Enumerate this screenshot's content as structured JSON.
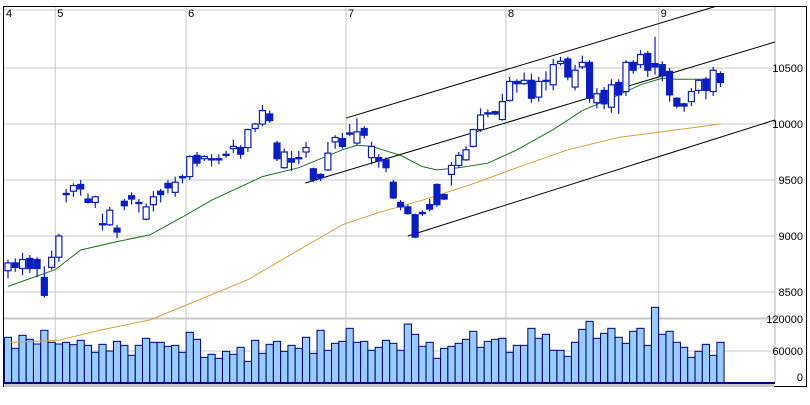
{
  "chart_data": {
    "type": "candlestick",
    "title": "",
    "x_month_labels": [
      {
        "label": "4",
        "start_index": 0
      },
      {
        "label": "5",
        "start_index": 7
      },
      {
        "label": "6",
        "start_index": 25
      },
      {
        "label": "7",
        "start_index": 47
      },
      {
        "label": "8",
        "start_index": 69
      },
      {
        "label": "9",
        "start_index": 90
      }
    ],
    "price_axis": {
      "ticks": [
        10500,
        10000,
        9500,
        9000,
        8500
      ],
      "tick_labels": [
        "10500",
        "10000",
        "9500",
        "9000",
        "8500"
      ]
    },
    "volume_axis": {
      "ticks": [
        120000,
        60000,
        0
      ],
      "tick_labels": [
        "120000",
        "60000",
        "0"
      ]
    },
    "grid": true,
    "colors": {
      "candle": "#0a1ec0",
      "volume_fill": "#99ccff",
      "volume_stroke": "#00007a",
      "ma_short": "#1e6e1e",
      "ma_long": "#d6a23a",
      "trendline": "#000000",
      "grid": "#c8c8c8"
    },
    "ohlc": [
      [
        8690,
        8790,
        8620,
        8760
      ],
      [
        8760,
        8800,
        8680,
        8720
      ],
      [
        8710,
        8850,
        8650,
        8790
      ],
      [
        8800,
        8830,
        8670,
        8710
      ],
      [
        8790,
        8810,
        8630,
        8710
      ],
      [
        8630,
        8730,
        8450,
        8470
      ],
      [
        8720,
        8870,
        8700,
        8810
      ],
      [
        8810,
        9020,
        8770,
        9000
      ],
      [
        9370,
        9420,
        9300,
        9380
      ],
      [
        9400,
        9470,
        9350,
        9450
      ],
      [
        9460,
        9500,
        9360,
        9420
      ],
      [
        9330,
        9380,
        9290,
        9300
      ],
      [
        9300,
        9360,
        9250,
        9350
      ],
      [
        9100,
        9200,
        9050,
        9110
      ],
      [
        9100,
        9260,
        9090,
        9230
      ],
      [
        9070,
        9100,
        8980,
        9035
      ],
      [
        9310,
        9330,
        9230,
        9270
      ],
      [
        9360,
        9390,
        9280,
        9330
      ],
      [
        9300,
        9330,
        9210,
        9300
      ],
      [
        9150,
        9290,
        9140,
        9260
      ],
      [
        9280,
        9400,
        9220,
        9350
      ],
      [
        9400,
        9420,
        9300,
        9370
      ],
      [
        9470,
        9500,
        9380,
        9430
      ],
      [
        9390,
        9530,
        9350,
        9480
      ],
      [
        9520,
        9550,
        9470,
        9530
      ],
      [
        9530,
        9720,
        9500,
        9710
      ],
      [
        9720,
        9750,
        9620,
        9650
      ],
      [
        9690,
        9720,
        9670,
        9710
      ],
      [
        9690,
        9730,
        9620,
        9690
      ],
      [
        9680,
        9730,
        9640,
        9690
      ],
      [
        9720,
        9760,
        9700,
        9730
      ],
      [
        9780,
        9860,
        9740,
        9800
      ],
      [
        9790,
        9810,
        9690,
        9730
      ],
      [
        9790,
        9960,
        9750,
        9950
      ],
      [
        9960,
        10010,
        9930,
        10000
      ],
      [
        10000,
        10170,
        9980,
        10120
      ],
      [
        10090,
        10120,
        10010,
        10030
      ],
      [
        9830,
        9850,
        9670,
        9690
      ],
      [
        9610,
        9780,
        9600,
        9750
      ],
      [
        9690,
        9760,
        9580,
        9660
      ],
      [
        9700,
        9760,
        9640,
        9690
      ],
      [
        9750,
        9840,
        9700,
        9790
      ],
      [
        9600,
        9610,
        9480,
        9500
      ],
      [
        9550,
        9560,
        9490,
        9520
      ],
      [
        9590,
        9840,
        9580,
        9740
      ],
      [
        9840,
        9900,
        9780,
        9880
      ],
      [
        9870,
        9920,
        9780,
        9800
      ],
      [
        9910,
        10000,
        9890,
        9920
      ],
      [
        9830,
        10050,
        9810,
        9930
      ],
      [
        9960,
        9980,
        9870,
        9900
      ],
      [
        9700,
        9840,
        9640,
        9800
      ],
      [
        9700,
        9730,
        9610,
        9670
      ],
      [
        9680,
        9700,
        9570,
        9610
      ],
      [
        9480,
        9500,
        9330,
        9340
      ],
      [
        9300,
        9320,
        9230,
        9260
      ],
      [
        9260,
        9280,
        9190,
        9200
      ],
      [
        9190,
        9200,
        8980,
        8990
      ],
      [
        9200,
        9230,
        9180,
        9210
      ],
      [
        9280,
        9330,
        9220,
        9240
      ],
      [
        9460,
        9470,
        9260,
        9280
      ],
      [
        9370,
        9380,
        9320,
        9330
      ],
      [
        9550,
        9660,
        9450,
        9630
      ],
      [
        9630,
        9750,
        9610,
        9720
      ],
      [
        9680,
        9800,
        9670,
        9770
      ],
      [
        9800,
        9960,
        9790,
        9950
      ],
      [
        9950,
        10140,
        9930,
        10080
      ],
      [
        10090,
        10130,
        10060,
        10100
      ],
      [
        10110,
        10120,
        10080,
        10090
      ],
      [
        10040,
        10270,
        10030,
        10200
      ],
      [
        10210,
        10420,
        10200,
        10380
      ],
      [
        10380,
        10400,
        10280,
        10360
      ],
      [
        10360,
        10460,
        10350,
        10390
      ],
      [
        10390,
        10450,
        10190,
        10230
      ],
      [
        10240,
        10420,
        10200,
        10380
      ],
      [
        10390,
        10470,
        10300,
        10380
      ],
      [
        10350,
        10580,
        10300,
        10530
      ],
      [
        10540,
        10600,
        10520,
        10560
      ],
      [
        10580,
        10600,
        10390,
        10420
      ],
      [
        10330,
        10530,
        10300,
        10480
      ],
      [
        10510,
        10610,
        10490,
        10550
      ],
      [
        10550,
        10570,
        10190,
        10230
      ],
      [
        10190,
        10320,
        10140,
        10270
      ],
      [
        10300,
        10330,
        10130,
        10180
      ],
      [
        10150,
        10400,
        10100,
        10350
      ],
      [
        10370,
        10400,
        10090,
        10260
      ],
      [
        10290,
        10570,
        10250,
        10550
      ],
      [
        10550,
        10570,
        10450,
        10480
      ],
      [
        10530,
        10660,
        10500,
        10620
      ],
      [
        10630,
        10650,
        10420,
        10480
      ],
      [
        10540,
        10780,
        10440,
        10510
      ],
      [
        10530,
        10560,
        10380,
        10430
      ],
      [
        10470,
        10500,
        10200,
        10260
      ],
      [
        10230,
        10240,
        10140,
        10160
      ],
      [
        10180,
        10190,
        10110,
        10160
      ],
      [
        10200,
        10320,
        10160,
        10290
      ],
      [
        10300,
        10400,
        10270,
        10390
      ],
      [
        10400,
        10420,
        10220,
        10300
      ],
      [
        10290,
        10510,
        10250,
        10480
      ],
      [
        10450,
        10470,
        10330,
        10370
      ]
    ],
    "volume": [
      85700,
      65000,
      89400,
      81900,
      73100,
      98800,
      76300,
      73100,
      76300,
      71900,
      80000,
      70600,
      57500,
      72500,
      60000,
      78100,
      70600,
      51900,
      70600,
      83800,
      76300,
      76300,
      68800,
      70600,
      57500,
      95000,
      81900,
      48100,
      53800,
      46300,
      59400,
      53800,
      66900,
      40600,
      80000,
      55600,
      72500,
      78100,
      59400,
      70600,
      65000,
      85700,
      55600,
      98800,
      61300,
      74400,
      78100,
      102500,
      76300,
      78100,
      61300,
      66900,
      80000,
      74400,
      61300,
      110600,
      91300,
      68800,
      76300,
      46300,
      65000,
      68800,
      74400,
      81900,
      96900,
      66900,
      78100,
      81900,
      83800,
      57500,
      70600,
      70600,
      102500,
      83800,
      91300,
      61300,
      61300,
      50000,
      76300,
      100600,
      115600,
      83800,
      93100,
      102500,
      85700,
      74400,
      96900,
      102500,
      70600,
      141900,
      91300,
      96900,
      76300,
      66900,
      48100,
      59400,
      72500,
      51900,
      76300
    ],
    "ma_short_points": [
      [
        0,
        8550
      ],
      [
        6.5,
        8700
      ],
      [
        10,
        8875
      ],
      [
        15,
        8950
      ],
      [
        19.5,
        9010
      ],
      [
        24,
        9170
      ],
      [
        28,
        9320
      ],
      [
        35,
        9530
      ],
      [
        40,
        9610
      ],
      [
        46,
        9770
      ],
      [
        48,
        9810
      ],
      [
        50,
        9800
      ],
      [
        54,
        9720
      ],
      [
        57,
        9620
      ],
      [
        59,
        9590
      ],
      [
        62,
        9610
      ],
      [
        66,
        9650
      ],
      [
        70,
        9770
      ],
      [
        75,
        9950
      ],
      [
        79,
        10120
      ],
      [
        83,
        10230
      ],
      [
        87,
        10350
      ],
      [
        90,
        10410
      ],
      [
        92,
        10400
      ],
      [
        98,
        10400
      ]
    ],
    "ma_long_points": [
      [
        0.3,
        8050
      ],
      [
        7,
        8070
      ],
      [
        12.7,
        8160
      ],
      [
        19.5,
        8250
      ],
      [
        24,
        8370
      ],
      [
        33,
        8610
      ],
      [
        40,
        8875
      ],
      [
        46,
        9100
      ],
      [
        51,
        9210
      ],
      [
        57,
        9320
      ],
      [
        63.5,
        9455
      ],
      [
        70,
        9610
      ],
      [
        77,
        9770
      ],
      [
        84,
        9880
      ],
      [
        90,
        9930
      ],
      [
        98,
        10000
      ]
    ],
    "trendlines": [
      {
        "from": [
          46.5,
          10053
        ],
        "to": [
          98,
          11063
        ]
      },
      {
        "from": [
          40.9,
          9473
        ],
        "to": [
          105.5,
          10732
        ]
      },
      {
        "from": [
          55,
          9000
        ],
        "to": [
          105.5,
          10036
        ]
      }
    ]
  }
}
